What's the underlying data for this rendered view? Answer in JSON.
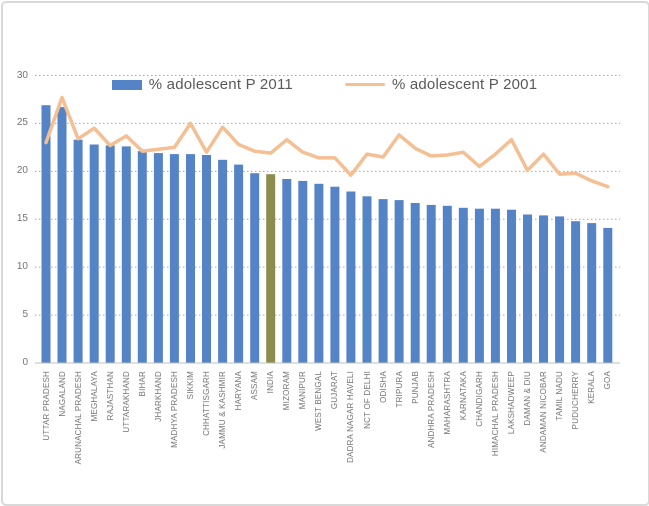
{
  "legend": {
    "items": [
      {
        "label": "% adolescent P 2011",
        "swatch": "bar-swatch",
        "color": "#5584C6"
      },
      {
        "label": "% adolescent P 2001",
        "swatch": "line-swatch",
        "color": "#F4BF93"
      }
    ]
  },
  "axis": {
    "y_tick_labels": [
      "0",
      "5",
      "10",
      "15",
      "20",
      "25",
      "30"
    ],
    "text_color": "#737373"
  },
  "chart_data": {
    "type": "bar",
    "subtype": "bar-with-line-overlay",
    "title": "",
    "xlabel": "",
    "ylabel": "",
    "ylim": [
      0,
      30
    ],
    "yticks": [
      0,
      5,
      10,
      15,
      20,
      25,
      30
    ],
    "grid": "horizontal-dotted",
    "legend_position": "top-center",
    "categories": [
      "UTTAR PRADESH",
      "NAGALAND",
      "ARUNACHAL PRADESH",
      "MEGHALAYA",
      "RAJASTHAN",
      "UTTARAKHAND",
      "BIHAR",
      "JHARKHAND",
      "MADHYA PRADESH",
      "SIKKIM",
      "CHHATTISGARH",
      "JAMMU & KASHMIR",
      "HARYANA",
      "ASSAM",
      "INDIA",
      "MIZORAM",
      "MANIPUR",
      "WEST BENGAL",
      "GUJARAT",
      "DADRA NAGAR HAVELI",
      "NCT OF DELHI",
      "ODISHA",
      "TRIPURA",
      "PUNJAB",
      "ANDHRA PRADESH",
      "MAHARASHTRA",
      "KARNATAKA",
      "CHANDIGARH",
      "HIMACHAL PRADESH",
      "LAKSHADWEEP",
      "DAMAN & DIU",
      "ANDAMAN NICOBAR",
      "TAMIL NADU",
      "PUDUCHERRY",
      "KERALA",
      "GOA"
    ],
    "series": [
      {
        "name": "% adolescent P 2011",
        "type": "bar",
        "color": "#5584C6",
        "values": [
          26.9,
          26.7,
          23.3,
          22.8,
          22.7,
          22.6,
          22.1,
          21.9,
          21.8,
          21.8,
          21.7,
          21.2,
          20.7,
          19.8,
          19.7,
          19.2,
          19.0,
          18.7,
          18.4,
          17.9,
          17.4,
          17.1,
          17.0,
          16.7,
          16.5,
          16.4,
          16.2,
          16.1,
          16.1,
          16.0,
          15.5,
          15.4,
          15.3,
          14.8,
          14.6,
          14.1
        ]
      },
      {
        "name": "% adolescent P 2001",
        "type": "line",
        "color": "#F4BF93",
        "values": [
          23.0,
          27.7,
          23.4,
          24.5,
          22.7,
          23.7,
          22.1,
          22.3,
          22.5,
          25.0,
          22.0,
          24.6,
          22.8,
          22.1,
          21.9,
          23.3,
          22.0,
          21.4,
          21.4,
          19.6,
          21.8,
          21.5,
          23.8,
          22.4,
          21.6,
          21.7,
          22.0,
          20.5,
          21.8,
          23.3,
          20.1,
          21.8,
          19.7,
          19.8,
          19.0,
          18.4
        ]
      }
    ],
    "highlight_category": "INDIA",
    "highlight_color": "#8C8C4F",
    "gridline_color": "#A6A6A6",
    "baseline_color": "#BFBFBF"
  }
}
